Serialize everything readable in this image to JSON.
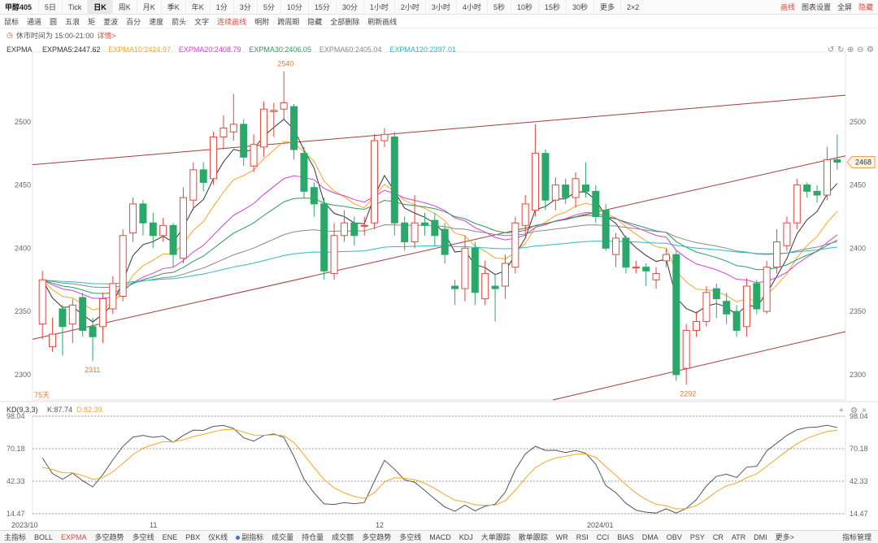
{
  "topbar": {
    "symbol": "甲醇405",
    "periods": [
      "5日",
      "Tick",
      "日K",
      "周K",
      "月K",
      "季K",
      "年K",
      "1分",
      "3分",
      "5分",
      "10分",
      "15分",
      "30分",
      "1小时",
      "2小时",
      "3小时",
      "4小时",
      "5秒",
      "10秒",
      "15秒",
      "30秒",
      "更多",
      "2×2"
    ],
    "active_period": "日K",
    "right": [
      "画线",
      "图表设置",
      "全屏",
      "隐藏"
    ]
  },
  "toolbar": {
    "tools": [
      "鼠标",
      "通道",
      "圆",
      "五浪",
      "矩",
      "菱波",
      "百分",
      "速度",
      "箭头",
      "文字",
      "连续画线",
      "明附",
      "跨周期",
      "隐藏",
      "全部删除",
      "刷新画线"
    ],
    "active_tool": "连续画线"
  },
  "infobar": {
    "trading_hours": "休市时间为 15:00-21:00",
    "details_link": "详情>"
  },
  "ema_legend": {
    "name": "EXPMA",
    "items": [
      {
        "text": "EXPMA5:2447.62",
        "color": "#333333"
      },
      {
        "text": "EXPMA10:2424.97",
        "color": "#f5a623"
      },
      {
        "text": "EXPMA20:2408.79",
        "color": "#d63ed6"
      },
      {
        "text": "EXPMA30:2406.05",
        "color": "#2a9d5a"
      },
      {
        "text": "EXPMA60:2405.04",
        "color": "#888888"
      },
      {
        "text": "EXPMA120:2397.01",
        "color": "#2bb7c9"
      }
    ]
  },
  "kd_legend": {
    "name": "KD(9,3,3)",
    "k": "K:87.74",
    "d": "D:82.39",
    "k_color": "#555555",
    "d_color": "#f5a623"
  },
  "price_tag": "2468",
  "days_label": "75天",
  "colors": {
    "up": "#e0483e",
    "down": "#2aa86a",
    "channel": "#a33a3a"
  },
  "chart_data": {
    "type": "candlestick",
    "y_ticks": [
      2300,
      2350,
      2400,
      2450,
      2500
    ],
    "kd_ticks": [
      "98.04",
      "70.18",
      "42.33",
      "14.47"
    ],
    "x_labels": [
      "2023/10",
      "11",
      "12",
      "2024/01"
    ],
    "annotations": {
      "max": "2540",
      "min_left": "2311",
      "min_right": "2292"
    },
    "candles": [
      {
        "o": 2340,
        "c": 2375,
        "h": 2382,
        "l": 2328
      },
      {
        "o": 2322,
        "c": 2332,
        "h": 2345,
        "l": 2318
      },
      {
        "o": 2352,
        "c": 2338,
        "h": 2355,
        "l": 2315
      },
      {
        "o": 2340,
        "c": 2355,
        "h": 2360,
        "l": 2325
      },
      {
        "o": 2361,
        "c": 2335,
        "h": 2365,
        "l": 2330
      },
      {
        "o": 2338,
        "c": 2330,
        "h": 2345,
        "l": 2311
      },
      {
        "o": 2338,
        "c": 2360,
        "h": 2365,
        "l": 2325
      },
      {
        "o": 2352,
        "c": 2372,
        "h": 2378,
        "l": 2348
      },
      {
        "o": 2362,
        "c": 2410,
        "h": 2415,
        "l": 2358
      },
      {
        "o": 2412,
        "c": 2435,
        "h": 2440,
        "l": 2405
      },
      {
        "o": 2435,
        "c": 2420,
        "h": 2438,
        "l": 2410
      },
      {
        "o": 2420,
        "c": 2410,
        "h": 2428,
        "l": 2400
      },
      {
        "o": 2410,
        "c": 2418,
        "h": 2424,
        "l": 2405
      },
      {
        "o": 2418,
        "c": 2395,
        "h": 2420,
        "l": 2385
      },
      {
        "o": 2392,
        "c": 2440,
        "h": 2448,
        "l": 2388
      },
      {
        "o": 2438,
        "c": 2462,
        "h": 2468,
        "l": 2430
      },
      {
        "o": 2462,
        "c": 2452,
        "h": 2468,
        "l": 2445
      },
      {
        "o": 2455,
        "c": 2488,
        "h": 2492,
        "l": 2450
      },
      {
        "o": 2488,
        "c": 2495,
        "h": 2505,
        "l": 2478
      },
      {
        "o": 2492,
        "c": 2498,
        "h": 2522,
        "l": 2485
      },
      {
        "o": 2498,
        "c": 2472,
        "h": 2502,
        "l": 2465
      },
      {
        "o": 2465,
        "c": 2482,
        "h": 2490,
        "l": 2460
      },
      {
        "o": 2480,
        "c": 2510,
        "h": 2516,
        "l": 2472
      },
      {
        "o": 2508,
        "c": 2509,
        "h": 2515,
        "l": 2488
      },
      {
        "o": 2510,
        "c": 2515,
        "h": 2540,
        "l": 2502
      },
      {
        "o": 2512,
        "c": 2478,
        "h": 2514,
        "l": 2470
      },
      {
        "o": 2475,
        "c": 2445,
        "h": 2480,
        "l": 2440
      },
      {
        "o": 2448,
        "c": 2435,
        "h": 2452,
        "l": 2425
      },
      {
        "o": 2435,
        "c": 2382,
        "h": 2440,
        "l": 2375
      },
      {
        "o": 2380,
        "c": 2410,
        "h": 2420,
        "l": 2375
      },
      {
        "o": 2410,
        "c": 2420,
        "h": 2430,
        "l": 2405
      },
      {
        "o": 2420,
        "c": 2410,
        "h": 2425,
        "l": 2402
      },
      {
        "o": 2418,
        "c": 2418,
        "h": 2425,
        "l": 2410
      },
      {
        "o": 2420,
        "c": 2485,
        "h": 2490,
        "l": 2415
      },
      {
        "o": 2485,
        "c": 2490,
        "h": 2495,
        "l": 2480
      },
      {
        "o": 2488,
        "c": 2420,
        "h": 2492,
        "l": 2410
      },
      {
        "o": 2420,
        "c": 2405,
        "h": 2425,
        "l": 2398
      },
      {
        "o": 2405,
        "c": 2420,
        "h": 2442,
        "l": 2400
      },
      {
        "o": 2420,
        "c": 2418,
        "h": 2428,
        "l": 2410
      },
      {
        "o": 2422,
        "c": 2410,
        "h": 2428,
        "l": 2402
      },
      {
        "o": 2415,
        "c": 2395,
        "h": 2420,
        "l": 2388
      },
      {
        "o": 2370,
        "c": 2368,
        "h": 2375,
        "l": 2355
      },
      {
        "o": 2368,
        "c": 2400,
        "h": 2410,
        "l": 2358
      },
      {
        "o": 2400,
        "c": 2365,
        "h": 2405,
        "l": 2355
      },
      {
        "o": 2360,
        "c": 2380,
        "h": 2390,
        "l": 2355
      },
      {
        "o": 2370,
        "c": 2368,
        "h": 2380,
        "l": 2342
      },
      {
        "o": 2370,
        "c": 2388,
        "h": 2395,
        "l": 2360
      },
      {
        "o": 2385,
        "c": 2420,
        "h": 2425,
        "l": 2380
      },
      {
        "o": 2418,
        "c": 2435,
        "h": 2442,
        "l": 2410
      },
      {
        "o": 2430,
        "c": 2475,
        "h": 2498,
        "l": 2425
      },
      {
        "o": 2475,
        "c": 2438,
        "h": 2478,
        "l": 2430
      },
      {
        "o": 2438,
        "c": 2450,
        "h": 2456,
        "l": 2430
      },
      {
        "o": 2450,
        "c": 2440,
        "h": 2455,
        "l": 2435
      },
      {
        "o": 2440,
        "c": 2455,
        "h": 2460,
        "l": 2432
      },
      {
        "o": 2450,
        "c": 2445,
        "h": 2468,
        "l": 2440
      },
      {
        "o": 2445,
        "c": 2425,
        "h": 2450,
        "l": 2420
      },
      {
        "o": 2430,
        "c": 2400,
        "h": 2435,
        "l": 2398
      },
      {
        "o": 2395,
        "c": 2408,
        "h": 2412,
        "l": 2385
      },
      {
        "o": 2408,
        "c": 2385,
        "h": 2410,
        "l": 2380
      },
      {
        "o": 2385,
        "c": 2385,
        "h": 2390,
        "l": 2380
      },
      {
        "o": 2385,
        "c": 2382,
        "h": 2388,
        "l": 2370
      },
      {
        "o": 2375,
        "c": 2380,
        "h": 2385,
        "l": 2368
      },
      {
        "o": 2390,
        "c": 2395,
        "h": 2400,
        "l": 2385
      },
      {
        "o": 2395,
        "c": 2300,
        "h": 2398,
        "l": 2295
      },
      {
        "o": 2305,
        "c": 2335,
        "h": 2340,
        "l": 2292
      },
      {
        "o": 2335,
        "c": 2342,
        "h": 2350,
        "l": 2330
      },
      {
        "o": 2342,
        "c": 2365,
        "h": 2370,
        "l": 2338
      },
      {
        "o": 2368,
        "c": 2360,
        "h": 2372,
        "l": 2345
      },
      {
        "o": 2358,
        "c": 2348,
        "h": 2365,
        "l": 2340
      },
      {
        "o": 2350,
        "c": 2335,
        "h": 2355,
        "l": 2330
      },
      {
        "o": 2338,
        "c": 2370,
        "h": 2376,
        "l": 2330
      },
      {
        "o": 2372,
        "c": 2352,
        "h": 2375,
        "l": 2348
      },
      {
        "o": 2350,
        "c": 2385,
        "h": 2390,
        "l": 2348
      },
      {
        "o": 2385,
        "c": 2405,
        "h": 2415,
        "l": 2380
      },
      {
        "o": 2402,
        "c": 2420,
        "h": 2425,
        "l": 2398
      },
      {
        "o": 2420,
        "c": 2450,
        "h": 2455,
        "l": 2415
      },
      {
        "o": 2450,
        "c": 2445,
        "h": 2452,
        "l": 2440
      },
      {
        "o": 2445,
        "c": 2442,
        "h": 2450,
        "l": 2436
      },
      {
        "o": 2442,
        "c": 2470,
        "h": 2480,
        "l": 2438
      },
      {
        "o": 2470,
        "c": 2468,
        "h": 2490,
        "l": 2462
      }
    ]
  },
  "bottombar": {
    "items": [
      "主指标",
      "BOLL",
      "EXPMA",
      "多空趋势",
      "多空线",
      "ENE",
      "PBX",
      "仪K线",
      "副指标",
      "成交量",
      "持仓量",
      "成交额",
      "多空趋势",
      "多空线",
      "MACD",
      "KDJ",
      "大单跟踪",
      "散单跟踪",
      "WR",
      "RSI",
      "CCI",
      "BIAS",
      "DMA",
      "OBV",
      "PSY",
      "CR",
      "ATR",
      "DMI",
      "更多>"
    ],
    "active": "EXPMA",
    "manage": "指标管理"
  }
}
